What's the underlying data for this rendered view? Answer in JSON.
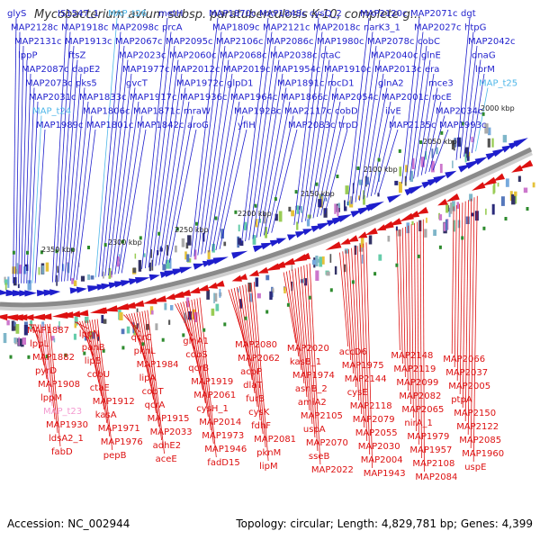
{
  "title": "Mycobacterium avium subsp. paratuberculosis K-10, complete g...",
  "footer": {
    "accession": "Accession: NC_002944",
    "summary": "Topology: circular; Length: 4,829,781 bp; Genes: 4,399"
  },
  "colors": {
    "forward_strand": "#1e1ecc",
    "reverse_strand": "#dd1111",
    "rna_forward": "#4fb7e9",
    "rna_reverse": "#f49ad0",
    "backbone": "#8a8a8a",
    "tick": "#2e8b2e"
  },
  "scale_labels": [
    "2000 kbp",
    "2050 kbp",
    "2100 kbp",
    "2150 kbp",
    "2200 kbp",
    "2250 kbp",
    "2300 kbp",
    "2350 kbp"
  ],
  "top_labels": [
    "glyS",
    "MAP2128c",
    "MAP2131c",
    "lppP",
    "MAP2087c",
    "MAP2073c",
    "MAP2031c",
    "MAP_t24",
    "MAP1989c",
    "IS1547_1",
    "MAP1918c",
    "MAP1913c",
    "ftsZ",
    "dapE2",
    "pks5",
    "MAP1833c",
    "MAP1806c",
    "MAP1801c",
    "MAP_t26",
    "MAP2098c",
    "MAP2067c",
    "MAP2023c",
    "MAP1977c",
    "gvcT",
    "MAP1917c",
    "MAP1871c",
    "MAP1842c",
    "metH",
    "prcA",
    "MAP2095c",
    "MAP2060c",
    "MAP2012c",
    "MAP1972c",
    "MAP1936c",
    "mraW",
    "aroG",
    "MAP1870c",
    "MAP1809c",
    "MAP2106c",
    "MAP2068c",
    "MAP2019c",
    "glpD1",
    "MAP1964c",
    "MAP1928c",
    "yfiH",
    "MAP1848c",
    "MAP2121c",
    "MAP2086c",
    "MAP2038c",
    "MAP1954c",
    "MAP1891c",
    "MAP1866c",
    "MAP2117c",
    "MAP2083c",
    "cysQ_2",
    "MAP2018c",
    "MAP1980c",
    "ctaC",
    "MAP1910c",
    "rocD1",
    "MAP2054c",
    "cobD",
    "trpD",
    "MAP2120c",
    "narK3_1",
    "MAP2078c",
    "MAP2040c",
    "MAP2013c",
    "glnA2",
    "MAP2001c",
    "ilvE",
    "MAP2135c",
    "MAP2071c",
    "MAP2027c",
    "cobC",
    "glnE",
    "era",
    "mce3",
    "rocE",
    "MAP2034c",
    "MAP1993c",
    "dgt",
    "htpG",
    "MAP2042c",
    "dnaG",
    "lprM",
    "MAP_t25"
  ],
  "bottom_labels": [
    "MAP1887",
    "lppL",
    "MAP1882",
    "pyrD",
    "MAP1908",
    "lppM",
    "MAP_t23",
    "MAP1930",
    "ldsA2_1",
    "fabD",
    "lppN",
    "panB",
    "lipB",
    "cobU",
    "ctaE",
    "MAP1912",
    "kasA",
    "MAP1971",
    "MAP1976",
    "pepB",
    "qcrC",
    "pknL",
    "MAP1984",
    "lipA",
    "cobT",
    "qcrA",
    "MAP1915",
    "MAP2033",
    "adhE2",
    "aceE",
    "glnA1",
    "cobS",
    "qcrB",
    "MAP1919",
    "MAP2061",
    "cysH_1",
    "MAP2014",
    "MAP1973",
    "MAP1946",
    "fadD15",
    "MAP2080",
    "MAP2062",
    "acpP",
    "dlaT",
    "furB",
    "cysK",
    "fdhF",
    "MAP2081",
    "pknM",
    "lipM",
    "MAP2020",
    "kasB_1",
    "MAP1974",
    "asnB_2",
    "amiA2",
    "MAP2105",
    "uspA",
    "MAP2070",
    "sseB",
    "MAP2022",
    "accD6",
    "MAP1975",
    "MAP2144",
    "cysE",
    "MAP2118",
    "MAP2079",
    "MAP2055",
    "MAP2030",
    "MAP2004",
    "MAP1943",
    "MAP2148",
    "MAP2119",
    "MAP2099",
    "MAP2082",
    "MAP2065",
    "nirA_1",
    "MAP1979",
    "MAP1957",
    "MAP2108",
    "MAP2084",
    "MAP2066",
    "MAP2037",
    "MAP2005",
    "ptpA",
    "MAP2150",
    "MAP2122",
    "MAP2085",
    "MAP1960",
    "uspE"
  ]
}
